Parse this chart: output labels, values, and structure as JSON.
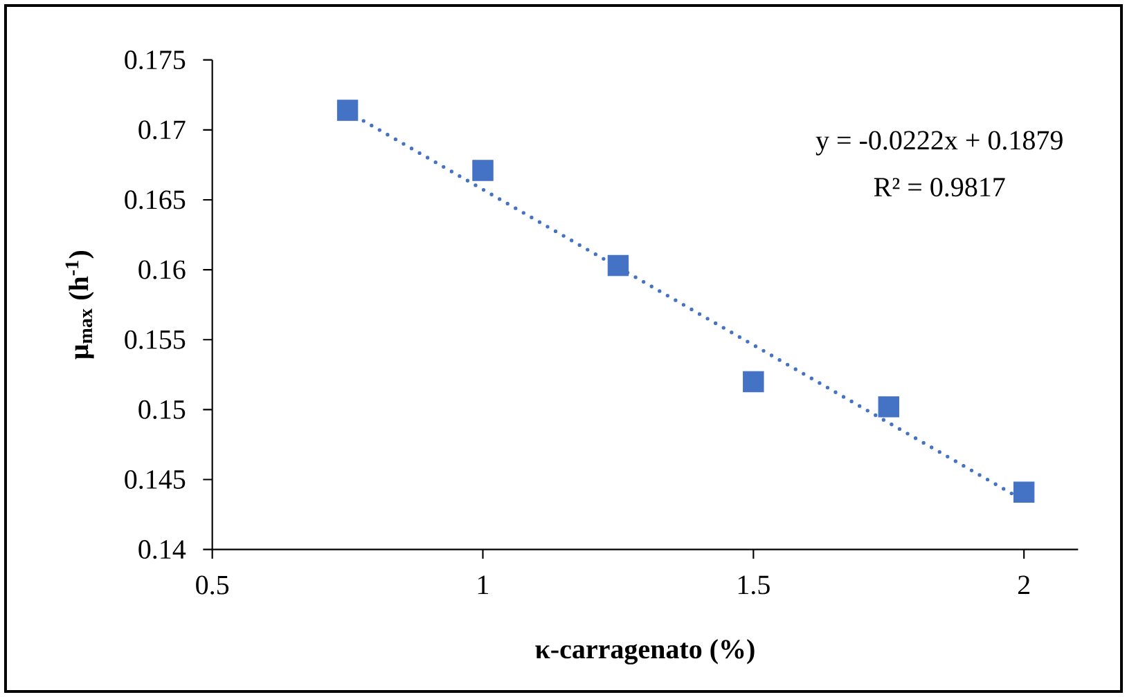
{
  "chart_data": {
    "type": "scatter",
    "xlabel": "κ-carragenato (%)",
    "ylabel": "μ$_{max}$ (h$^{-1}$)",
    "x": [
      0.75,
      1,
      1.25,
      1.5,
      1.75,
      2
    ],
    "series": [
      {
        "color": "#4472c4",
        "marker": "square",
        "values": [
          0.1714,
          0.1671,
          0.1603,
          0.152,
          0.1502,
          0.1441
        ]
      },
      {
        "type": "line",
        "color": "#4472c4",
        "line_style": "dotted",
        "marker": "none",
        "x": [
          0.75,
          2
        ],
        "values": [
          0.1713,
          0.1435
        ]
      }
    ],
    "annotations": [
      "y = -0.0222x + 0.1879",
      "R² = 0.9817"
    ],
    "xlim": [
      0.5,
      2.1
    ],
    "ylim": [
      0.14,
      0.175
    ],
    "xticks": [
      0.5,
      1,
      1.5,
      2
    ],
    "yticks": [
      0.14,
      0.145,
      0.15,
      0.155,
      0.16,
      0.165,
      0.17,
      0.175
    ],
    "grid": false
  }
}
